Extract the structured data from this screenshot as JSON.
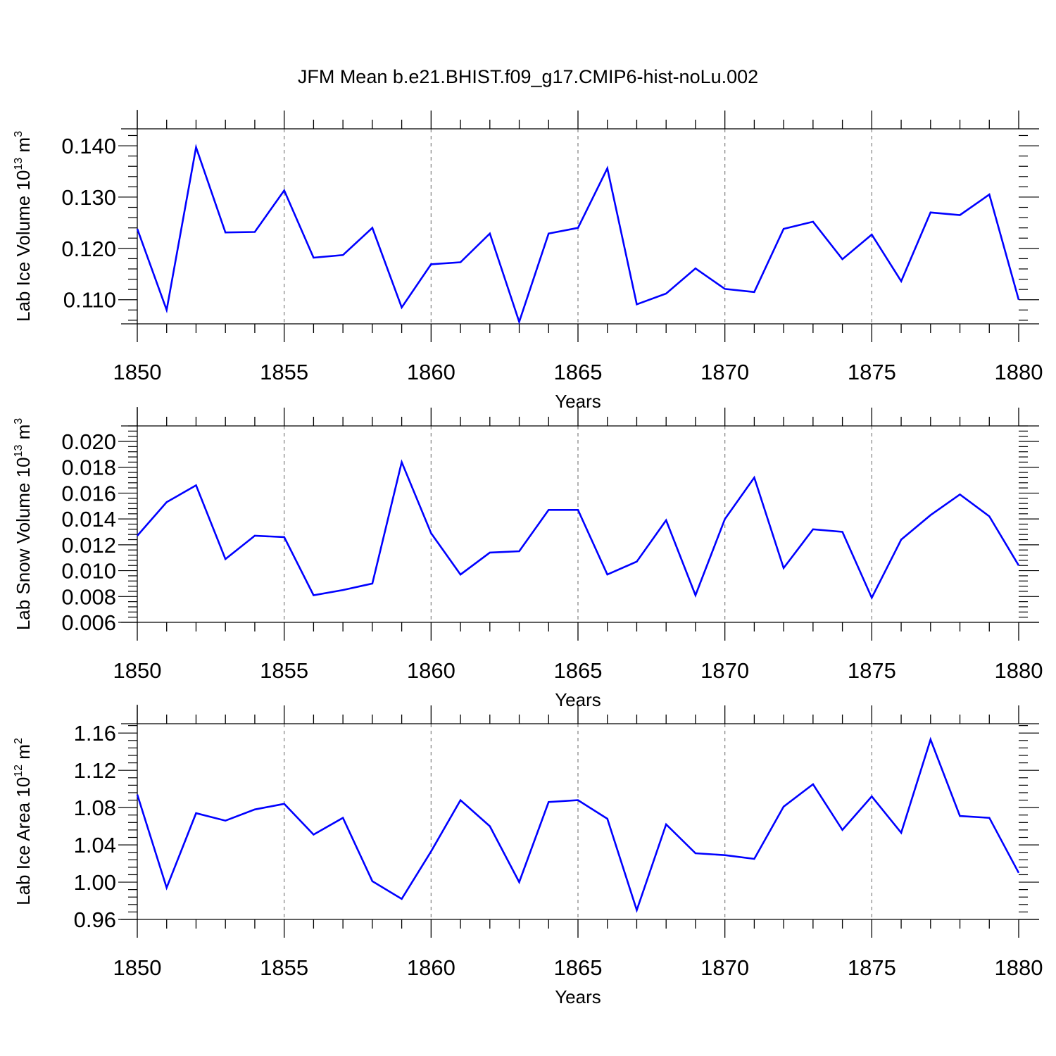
{
  "figure_title": "JFM Mean b.e21.BHIST.f09_g17.CMIP6-hist-noLu.002",
  "colors": {
    "line": "#0000ff",
    "axis": "#000000",
    "grid": "#808080"
  },
  "chart_data": [
    {
      "type": "line",
      "ylabel_main": "Lab Ice Volume 10",
      "ylabel_exp": "13",
      "ylabel_unit": " m",
      "ylabel_unit_exp": "3",
      "xlabel": "Years",
      "xlim": [
        1850,
        1880
      ],
      "ylim": [
        0.1053,
        0.1433
      ],
      "yticks": [
        0.11,
        0.12,
        0.13,
        0.14
      ],
      "ytick_labels": [
        "0.110",
        "0.120",
        "0.130",
        "0.140"
      ],
      "xticks": [
        1850,
        1855,
        1860,
        1865,
        1870,
        1875,
        1880
      ],
      "xtick_labels": [
        "1850",
        "1855",
        "1860",
        "1865",
        "1870",
        "1875",
        "1880"
      ],
      "series": [
        {
          "name": "Lab Ice Volume",
          "x": [
            1850,
            1851,
            1852,
            1853,
            1854,
            1855,
            1856,
            1857,
            1858,
            1859,
            1860,
            1861,
            1862,
            1863,
            1864,
            1865,
            1866,
            1867,
            1868,
            1869,
            1870,
            1871,
            1872,
            1873,
            1874,
            1875,
            1876,
            1877,
            1878,
            1879,
            1880
          ],
          "values": [
            0.1238,
            0.108,
            0.1397,
            0.1231,
            0.1232,
            0.1313,
            0.1182,
            0.1187,
            0.124,
            0.1085,
            0.1169,
            0.1173,
            0.1229,
            0.1057,
            0.1229,
            0.124,
            0.1356,
            0.1091,
            0.1112,
            0.1161,
            0.1121,
            0.1115,
            0.1238,
            0.1252,
            0.1179,
            0.1227,
            0.1136,
            0.127,
            0.1265,
            0.1305,
            0.11
          ]
        }
      ]
    },
    {
      "type": "line",
      "ylabel_main": "Lab Snow Volume 10",
      "ylabel_exp": "13",
      "ylabel_unit": " m",
      "ylabel_unit_exp": "3",
      "xlabel": "Years",
      "xlim": [
        1850,
        1880
      ],
      "ylim": [
        0.006,
        0.0212
      ],
      "yticks": [
        0.006,
        0.008,
        0.01,
        0.012,
        0.014,
        0.016,
        0.018,
        0.02
      ],
      "ytick_labels": [
        "0.006",
        "0.008",
        "0.010",
        "0.012",
        "0.014",
        "0.016",
        "0.018",
        "0.020"
      ],
      "xticks": [
        1850,
        1855,
        1860,
        1865,
        1870,
        1875,
        1880
      ],
      "xtick_labels": [
        "1850",
        "1855",
        "1860",
        "1865",
        "1870",
        "1875",
        "1880"
      ],
      "series": [
        {
          "name": "Lab Snow Volume",
          "x": [
            1850,
            1851,
            1852,
            1853,
            1854,
            1855,
            1856,
            1857,
            1858,
            1859,
            1860,
            1861,
            1862,
            1863,
            1864,
            1865,
            1866,
            1867,
            1868,
            1869,
            1870,
            1871,
            1872,
            1873,
            1874,
            1875,
            1876,
            1877,
            1878,
            1879,
            1880
          ],
          "values": [
            0.0127,
            0.0153,
            0.0166,
            0.0109,
            0.0127,
            0.0126,
            0.0081,
            0.0085,
            0.009,
            0.0184,
            0.0129,
            0.0097,
            0.0114,
            0.0115,
            0.0147,
            0.0147,
            0.0097,
            0.0107,
            0.0139,
            0.0081,
            0.014,
            0.0172,
            0.0102,
            0.0132,
            0.013,
            0.0079,
            0.0124,
            0.0143,
            0.0159,
            0.0142,
            0.0104
          ]
        }
      ]
    },
    {
      "type": "line",
      "ylabel_main": "Lab Ice Area 10",
      "ylabel_exp": "12",
      "ylabel_unit": " m",
      "ylabel_unit_exp": "2",
      "xlabel": "Years",
      "xlim": [
        1850,
        1880
      ],
      "ylim": [
        0.96,
        1.17
      ],
      "yticks": [
        0.96,
        1.0,
        1.04,
        1.08,
        1.12,
        1.16
      ],
      "ytick_labels": [
        "0.96",
        "1.00",
        "1.04",
        "1.08",
        "1.12",
        "1.16"
      ],
      "xticks": [
        1850,
        1855,
        1860,
        1865,
        1870,
        1875,
        1880
      ],
      "xtick_labels": [
        "1850",
        "1855",
        "1860",
        "1865",
        "1870",
        "1875",
        "1880"
      ],
      "series": [
        {
          "name": "Lab Ice Area",
          "x": [
            1850,
            1851,
            1852,
            1853,
            1854,
            1855,
            1856,
            1857,
            1858,
            1859,
            1860,
            1861,
            1862,
            1863,
            1864,
            1865,
            1866,
            1867,
            1868,
            1869,
            1870,
            1871,
            1872,
            1873,
            1874,
            1875,
            1876,
            1877,
            1878,
            1879,
            1880
          ],
          "values": [
            1.094,
            0.994,
            1.074,
            1.066,
            1.078,
            1.084,
            1.051,
            1.069,
            1.001,
            0.982,
            1.033,
            1.088,
            1.06,
            1.0,
            1.086,
            1.088,
            1.068,
            0.97,
            1.062,
            1.031,
            1.029,
            1.025,
            1.081,
            1.105,
            1.056,
            1.092,
            1.053,
            1.153,
            1.071,
            1.069,
            1.01
          ]
        }
      ]
    }
  ]
}
